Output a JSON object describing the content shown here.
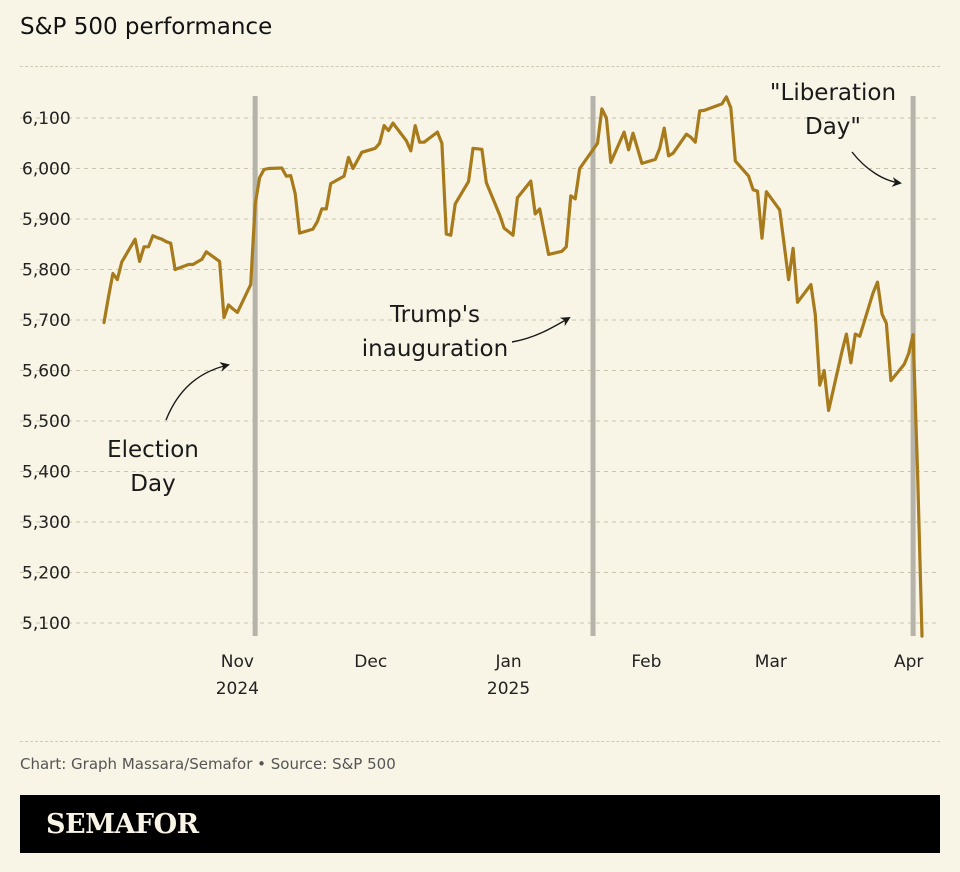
{
  "chart_data": {
    "type": "line",
    "title": "S&P 500 performance",
    "ylim": [
      5070,
      6145
    ],
    "y_ticks": [
      "5,100",
      "5,200",
      "5,300",
      "5,400",
      "5,500",
      "5,600",
      "5,700",
      "5,800",
      "5,900",
      "6,000",
      "6,100"
    ],
    "y_tick_values": [
      5100,
      5200,
      5300,
      5400,
      5500,
      5600,
      5700,
      5800,
      5900,
      6000,
      6100
    ],
    "x_ticks": [
      {
        "date": "2024-11-01",
        "label": "Nov",
        "year": "2024"
      },
      {
        "date": "2024-12-01",
        "label": "Dec",
        "year": ""
      },
      {
        "date": "2025-01-01",
        "label": "Jan",
        "year": "2025"
      },
      {
        "date": "2025-02-01",
        "label": "Feb",
        "year": ""
      },
      {
        "date": "2025-03-01",
        "label": "Mar",
        "year": ""
      },
      {
        "date": "2025-04-01",
        "label": "Apr",
        "year": ""
      }
    ],
    "xlim": [
      "2024-10-02",
      "2025-04-04"
    ],
    "grid": "horizontal dashed",
    "line_color": "#a77b1c",
    "event_line_color": "#b5b3aa",
    "events": [
      {
        "date": "2024-11-05",
        "label": [
          "Election",
          "Day"
        ]
      },
      {
        "date": "2025-01-20",
        "label": [
          "Trump's",
          "inauguration"
        ]
      },
      {
        "date": "2025-04-02",
        "label": [
          "\"Liberation",
          "Day\""
        ]
      }
    ],
    "series": [
      {
        "dates": [
          "2024-10-02",
          "2024-10-03",
          "2024-10-04",
          "2024-10-05",
          "2024-10-06",
          "2024-10-07",
          "2024-10-09",
          "2024-10-10",
          "2024-10-11",
          "2024-10-12",
          "2024-10-13",
          "2024-10-14",
          "2024-10-15",
          "2024-10-16",
          "2024-10-17",
          "2024-10-18",
          "2024-10-21",
          "2024-10-22",
          "2024-10-23",
          "2024-10-24",
          "2024-10-25",
          "2024-10-28",
          "2024-10-29",
          "2024-10-30",
          "2024-10-31",
          "2024-11-01",
          "2024-11-04",
          "2024-11-05",
          "2024-11-06",
          "2024-11-07",
          "2024-11-08",
          "2024-11-11",
          "2024-11-12",
          "2024-11-13",
          "2024-11-14",
          "2024-11-15",
          "2024-11-18",
          "2024-11-19",
          "2024-11-20",
          "2024-11-21",
          "2024-11-22",
          "2024-11-25",
          "2024-11-26",
          "2024-11-27",
          "2024-11-29",
          "2024-12-02",
          "2024-12-03",
          "2024-12-04",
          "2024-12-05",
          "2024-12-06",
          "2024-12-09",
          "2024-12-10",
          "2024-12-11",
          "2024-12-12",
          "2024-12-13",
          "2024-12-16",
          "2024-12-17",
          "2024-12-18",
          "2024-12-19",
          "2024-12-20",
          "2024-12-23",
          "2024-12-24",
          "2024-12-26",
          "2024-12-27",
          "2024-12-30",
          "2024-12-31",
          "2025-01-02",
          "2025-01-03",
          "2025-01-06",
          "2025-01-07",
          "2025-01-08",
          "2025-01-10",
          "2025-01-13",
          "2025-01-14",
          "2025-01-15",
          "2025-01-16",
          "2025-01-17",
          "2025-01-21",
          "2025-01-22",
          "2025-01-23",
          "2025-01-24",
          "2025-01-27",
          "2025-01-28",
          "2025-01-29",
          "2025-01-30",
          "2025-01-31",
          "2025-02-03",
          "2025-02-04",
          "2025-02-05",
          "2025-02-06",
          "2025-02-07",
          "2025-02-10",
          "2025-02-11",
          "2025-02-12",
          "2025-02-13",
          "2025-02-14",
          "2025-02-18",
          "2025-02-19",
          "2025-02-20",
          "2025-02-21",
          "2025-02-24",
          "2025-02-25",
          "2025-02-26",
          "2025-02-27",
          "2025-02-28",
          "2025-03-03",
          "2025-03-04",
          "2025-03-05",
          "2025-03-06",
          "2025-03-07",
          "2025-03-10",
          "2025-03-11",
          "2025-03-12",
          "2025-03-13",
          "2025-03-14",
          "2025-03-17",
          "2025-03-18",
          "2025-03-19",
          "2025-03-20",
          "2025-03-21",
          "2025-03-24",
          "2025-03-25",
          "2025-03-26",
          "2025-03-27",
          "2025-03-28",
          "2025-03-31",
          "2025-04-01",
          "2025-04-02",
          "2025-04-03",
          "2025-04-04"
        ],
        "values": [
          5695,
          5745,
          5792,
          5780,
          5815,
          5830,
          5860,
          5816,
          5845,
          5845,
          5867,
          5863,
          5860,
          5855,
          5852,
          5800,
          5810,
          5810,
          5815,
          5820,
          5835,
          5816,
          5705,
          5730,
          5722,
          5715,
          5770,
          5930,
          5982,
          5998,
          6000,
          6001,
          5985,
          5986,
          5950,
          5872,
          5880,
          5895,
          5920,
          5920,
          5970,
          5985,
          6022,
          6000,
          6032,
          6040,
          6050,
          6085,
          6075,
          6090,
          6055,
          6035,
          6085,
          6052,
          6052,
          6072,
          6050,
          5870,
          5868,
          5930,
          5974,
          6040,
          6038,
          5972,
          5908,
          5882,
          5868,
          5942,
          5975,
          5910,
          5920,
          5830,
          5836,
          5845,
          5946,
          5940,
          6000,
          6050,
          6118,
          6100,
          6012,
          6072,
          6037,
          6070,
          6040,
          6010,
          6018,
          6040,
          6080,
          6025,
          6030,
          6068,
          6062,
          6052,
          6114,
          6115,
          6128,
          6142,
          6120,
          6015,
          5985,
          5958,
          5955,
          5862,
          5954,
          5918,
          5849,
          5780,
          5842,
          5735,
          5770,
          5710,
          5571,
          5600,
          5521,
          5638,
          5672,
          5615,
          5672,
          5668,
          5754,
          5775,
          5712,
          5693,
          5580,
          5612,
          5634,
          5671,
          5396,
          5074
        ]
      }
    ]
  },
  "footer": {
    "credit": "Chart: Graph Massara/Semafor • Source: S&P 500",
    "logo": "SEMAFOR"
  }
}
